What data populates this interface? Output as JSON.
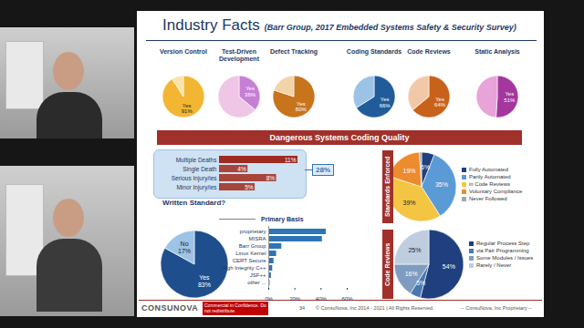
{
  "slide": {
    "title": "Industry Facts",
    "subtitle": "(Barr Group, 2017 Embedded Systems Safety & Security Survey)",
    "banner": "Dangerous Systems Coding Quality",
    "footer": {
      "logo": "CONSUNOVA",
      "notice": "Commercial in Confidence. Do not redistribute.",
      "page": "34",
      "copyright": "© ConsuNova, Inc 2014 - 2021 | All Rights Reserved.",
      "proprietary": "-- ConsuNova, Inc Proprietary --"
    }
  },
  "chart_data": [
    {
      "type": "pie",
      "title": "Version Control",
      "categories": [
        "Yes",
        null
      ],
      "values": [
        91,
        9
      ],
      "value_labels": [
        "91%",
        null
      ],
      "colors": [
        "#f2b632",
        "#fbe3a6"
      ]
    },
    {
      "type": "pie",
      "title": "Test-Driven Development",
      "categories": [
        "Yes",
        null
      ],
      "values": [
        36,
        64
      ],
      "value_labels": [
        "36%",
        null
      ],
      "colors": [
        "#c77fd6",
        "#efc6e6"
      ]
    },
    {
      "type": "pie",
      "title": "Defect Tracking",
      "categories": [
        "Yes",
        null
      ],
      "values": [
        80,
        20
      ],
      "value_labels": [
        "80%",
        null
      ],
      "colors": [
        "#c8741c",
        "#f3d3a8"
      ]
    },
    {
      "type": "pie",
      "title": "Coding Standards",
      "categories": [
        "Yes",
        null
      ],
      "values": [
        66,
        34
      ],
      "value_labels": [
        "66%",
        null
      ],
      "colors": [
        "#1f5c99",
        "#9cc3e6"
      ]
    },
    {
      "type": "pie",
      "title": "Code Reviews",
      "categories": [
        "Yes",
        null
      ],
      "values": [
        64,
        36
      ],
      "value_labels": [
        "64%",
        null
      ],
      "colors": [
        "#c8621a",
        "#f2c9a8"
      ]
    },
    {
      "type": "pie",
      "title": "Static Analysis",
      "categories": [
        "Yes",
        null
      ],
      "values": [
        51,
        49
      ],
      "value_labels": [
        "51%",
        null
      ],
      "colors": [
        "#a4379e",
        "#e8a3d8"
      ]
    },
    {
      "type": "bar",
      "orientation": "horizontal",
      "categories": [
        "Multiple Deaths",
        "Single Death",
        "Serious Injury/ies",
        "Minor Injury/ies"
      ],
      "values": [
        11,
        4,
        8,
        5
      ],
      "value_labels": [
        "11%",
        "4%",
        "8%",
        "5%"
      ],
      "data_labels": true,
      "tick_labels": "y",
      "xlim": [
        0,
        11
      ],
      "colors": [
        "#9e2a22",
        "#a8453a",
        "#a8453a",
        "#a8453a"
      ],
      "annotations": [
        "28%"
      ]
    },
    {
      "type": "pie",
      "title": "Written Standard?",
      "categories": [
        "Yes",
        "No"
      ],
      "values": [
        83,
        17
      ],
      "value_labels": [
        "83%",
        "17%"
      ],
      "colors": [
        "#1f4e8c",
        "#9dc3e6"
      ]
    },
    {
      "type": "bar",
      "orientation": "horizontal",
      "title": "Primary Basis",
      "categories": [
        "proprietary",
        "MISRA",
        "Barr Group",
        "Linux Kernel",
        "CERT Secure",
        "High Integrity C++",
        "JSF++",
        "other ..."
      ],
      "values": [
        44,
        41,
        10,
        6,
        4,
        3,
        2,
        1
      ],
      "color": "#2e75b6",
      "grid": false,
      "xlim": [
        0,
        60
      ],
      "xticks": [
        {
          "value": 0,
          "label": "0%"
        },
        {
          "value": 20,
          "label": "20%"
        },
        {
          "value": 40,
          "label": "40%"
        },
        {
          "value": 60,
          "label": "60%"
        }
      ]
    },
    {
      "type": "pie",
      "title": "Standards Enforced",
      "categories": [
        "Fully Automated",
        "Partly Automated",
        "in Code Reviews",
        "Voluntary Compliance",
        "Never Followed"
      ],
      "values": [
        6,
        35,
        39,
        19,
        1
      ],
      "value_labels": [
        "6%",
        "35%",
        "39%",
        "19%",
        null
      ],
      "colors": [
        "#1f3f7f",
        "#5b9bd5",
        "#f4c542",
        "#ed8b2f",
        "#a6a6a6"
      ],
      "legend": "right"
    },
    {
      "type": "pie",
      "title": "Code Reviews",
      "categories": [
        "Regular Process Step",
        "via Pair Programming",
        "Some Modules / Issues",
        "Rarely / Never"
      ],
      "values": [
        54,
        5,
        16,
        25
      ],
      "value_labels": [
        "54%",
        "5%",
        "16%",
        "25%"
      ],
      "colors": [
        "#1f3f7f",
        "#4a78b0",
        "#7f9cc0",
        "#bfcde0"
      ],
      "legend": "right"
    }
  ]
}
